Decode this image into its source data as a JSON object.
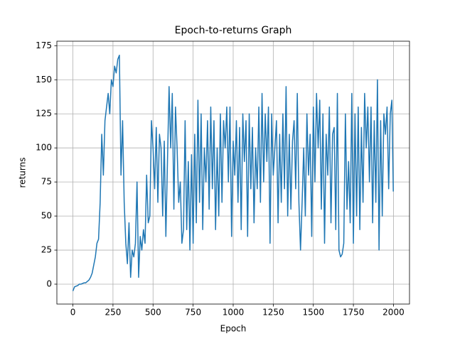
{
  "chart_data": {
    "type": "line",
    "title": "Epoch-to-returns Graph",
    "x_label": "Epoch",
    "y_label": "returns",
    "x": [
      0,
      10,
      20,
      30,
      40,
      50,
      60,
      70,
      80,
      90,
      100,
      110,
      120,
      130,
      140,
      150,
      160,
      170,
      180,
      190,
      200,
      210,
      220,
      230,
      240,
      250,
      260,
      270,
      280,
      290,
      300,
      310,
      320,
      330,
      340,
      350,
      360,
      370,
      380,
      390,
      400,
      410,
      420,
      430,
      440,
      450,
      460,
      470,
      480,
      490,
      500,
      510,
      520,
      530,
      540,
      550,
      560,
      570,
      580,
      590,
      600,
      610,
      620,
      630,
      640,
      650,
      660,
      670,
      680,
      690,
      700,
      710,
      720,
      730,
      740,
      750,
      760,
      770,
      780,
      790,
      800,
      810,
      820,
      830,
      840,
      850,
      860,
      870,
      880,
      890,
      900,
      910,
      920,
      930,
      940,
      950,
      960,
      970,
      980,
      990,
      1000,
      1010,
      1020,
      1030,
      1040,
      1050,
      1060,
      1070,
      1080,
      1090,
      1100,
      1110,
      1120,
      1130,
      1140,
      1150,
      1160,
      1170,
      1180,
      1190,
      1200,
      1210,
      1220,
      1230,
      1240,
      1250,
      1260,
      1270,
      1280,
      1290,
      1300,
      1310,
      1320,
      1330,
      1340,
      1350,
      1360,
      1370,
      1380,
      1390,
      1400,
      1410,
      1420,
      1430,
      1440,
      1450,
      1460,
      1470,
      1480,
      1490,
      1500,
      1510,
      1520,
      1530,
      1540,
      1550,
      1560,
      1570,
      1580,
      1590,
      1600,
      1610,
      1620,
      1630,
      1640,
      1650,
      1660,
      1670,
      1680,
      1690,
      1700,
      1710,
      1720,
      1730,
      1740,
      1750,
      1760,
      1770,
      1780,
      1790,
      1800,
      1810,
      1820,
      1830,
      1840,
      1850,
      1860,
      1870,
      1880,
      1890,
      1900,
      1910,
      1920,
      1930,
      1940,
      1950,
      1960,
      1970,
      1980,
      1990,
      1999
    ],
    "values": [
      -5,
      -2,
      -1.5,
      -1,
      0,
      0,
      0.5,
      1,
      1,
      2,
      3,
      5,
      8,
      14,
      20,
      30,
      33,
      60,
      110,
      80,
      120,
      130,
      140,
      125,
      150,
      145,
      160,
      155,
      165,
      168,
      80,
      120,
      60,
      30,
      15,
      45,
      5,
      25,
      20,
      30,
      75,
      5,
      35,
      25,
      40,
      30,
      80,
      45,
      50,
      120,
      100,
      70,
      115,
      60,
      110,
      100,
      50,
      105,
      35,
      90,
      145,
      100,
      140,
      55,
      130,
      100,
      60,
      75,
      30,
      40,
      120,
      40,
      90,
      25,
      95,
      30,
      110,
      45,
      135,
      60,
      125,
      40,
      100,
      75,
      120,
      55,
      130,
      70,
      120,
      40,
      100,
      50,
      125,
      60,
      120,
      100,
      130,
      75,
      130,
      35,
      105,
      80,
      120,
      60,
      115,
      40,
      125,
      90,
      120,
      35,
      125,
      70,
      115,
      45,
      100,
      70,
      130,
      60,
      140,
      75,
      125,
      90,
      130,
      30,
      125,
      80,
      100,
      120,
      45,
      110,
      60,
      125,
      70,
      145,
      50,
      110,
      55,
      105,
      120,
      70,
      140,
      60,
      25,
      60,
      100,
      50,
      125,
      80,
      110,
      35,
      130,
      75,
      140,
      100,
      135,
      55,
      125,
      30,
      110,
      80,
      130,
      45,
      110,
      115,
      40,
      140,
      25,
      20,
      22,
      30,
      125,
      55,
      90,
      45,
      140,
      30,
      125,
      50,
      130,
      40,
      115,
      60,
      140,
      100,
      130,
      75,
      130,
      45,
      120,
      60,
      150,
      25,
      120,
      50,
      125,
      110,
      130,
      70,
      125,
      135,
      68
    ],
    "color": "#1f77b4",
    "xlim": [
      -100,
      2100
    ],
    "ylim": [
      -14.6,
      178.3
    ],
    "xticks": [
      0,
      250,
      500,
      750,
      1000,
      1250,
      1500,
      1750,
      2000
    ],
    "yticks": [
      0,
      25,
      50,
      75,
      100,
      125,
      150,
      175
    ],
    "grid": true
  }
}
